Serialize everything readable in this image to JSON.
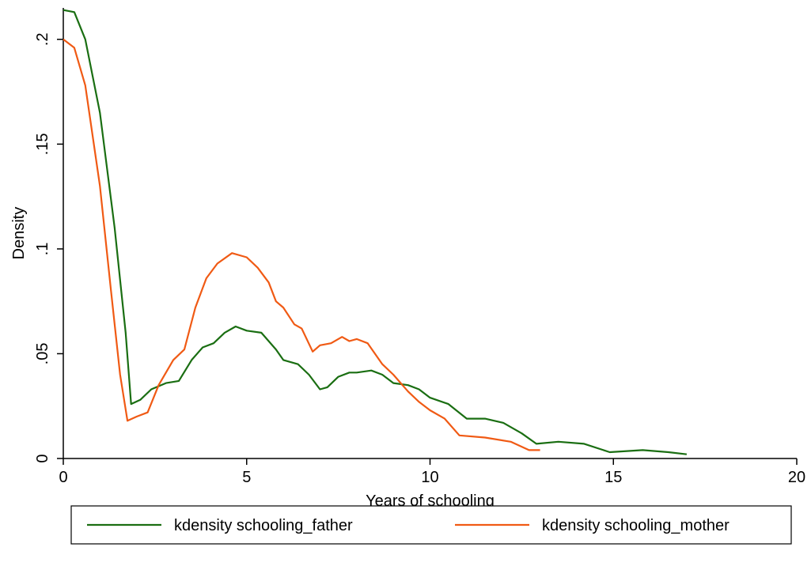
{
  "chart_data": {
    "type": "line",
    "title": "",
    "xlabel": "Years of schooling",
    "ylabel": "Density",
    "xlim": [
      0,
      20
    ],
    "ylim": [
      0,
      0.215
    ],
    "x_ticks": [
      {
        "value": 0,
        "label": "0"
      },
      {
        "value": 5,
        "label": "5"
      },
      {
        "value": 10,
        "label": "10"
      },
      {
        "value": 15,
        "label": "15"
      },
      {
        "value": 20,
        "label": "20"
      }
    ],
    "y_ticks": [
      {
        "value": 0,
        "label": "0"
      },
      {
        "value": 0.05,
        "label": ".05"
      },
      {
        "value": 0.1,
        "label": ".1"
      },
      {
        "value": 0.15,
        "label": ".15"
      },
      {
        "value": 0.2,
        "label": ".2"
      }
    ],
    "grid": false,
    "legend_position": "bottom",
    "series": [
      {
        "name": "kdensity schooling_father",
        "color": "#1a6e12",
        "points": [
          [
            0,
            0.214
          ],
          [
            0.3,
            0.213
          ],
          [
            0.6,
            0.2
          ],
          [
            1.0,
            0.165
          ],
          [
            1.4,
            0.11
          ],
          [
            1.7,
            0.06
          ],
          [
            1.85,
            0.026
          ],
          [
            2.1,
            0.028
          ],
          [
            2.4,
            0.033
          ],
          [
            2.8,
            0.036
          ],
          [
            3.15,
            0.037
          ],
          [
            3.5,
            0.047
          ],
          [
            3.8,
            0.053
          ],
          [
            4.1,
            0.055
          ],
          [
            4.4,
            0.06
          ],
          [
            4.7,
            0.063
          ],
          [
            5.0,
            0.061
          ],
          [
            5.4,
            0.06
          ],
          [
            5.8,
            0.052
          ],
          [
            6.0,
            0.047
          ],
          [
            6.4,
            0.045
          ],
          [
            6.7,
            0.04
          ],
          [
            7.0,
            0.033
          ],
          [
            7.2,
            0.034
          ],
          [
            7.5,
            0.039
          ],
          [
            7.8,
            0.041
          ],
          [
            8.0,
            0.041
          ],
          [
            8.4,
            0.042
          ],
          [
            8.7,
            0.04
          ],
          [
            9.0,
            0.036
          ],
          [
            9.4,
            0.035
          ],
          [
            9.7,
            0.033
          ],
          [
            10.0,
            0.029
          ],
          [
            10.5,
            0.026
          ],
          [
            11.0,
            0.019
          ],
          [
            11.5,
            0.019
          ],
          [
            12.0,
            0.017
          ],
          [
            12.5,
            0.012
          ],
          [
            12.9,
            0.007
          ],
          [
            13.5,
            0.008
          ],
          [
            14.2,
            0.007
          ],
          [
            14.9,
            0.003
          ],
          [
            15.8,
            0.004
          ],
          [
            16.5,
            0.003
          ],
          [
            17.0,
            0.002
          ]
        ]
      },
      {
        "name": "kdensity schooling_mother",
        "color": "#f05a14",
        "points": [
          [
            0,
            0.2
          ],
          [
            0.3,
            0.196
          ],
          [
            0.6,
            0.178
          ],
          [
            1.0,
            0.13
          ],
          [
            1.3,
            0.08
          ],
          [
            1.55,
            0.04
          ],
          [
            1.75,
            0.018
          ],
          [
            2.0,
            0.02
          ],
          [
            2.3,
            0.022
          ],
          [
            2.6,
            0.035
          ],
          [
            3.0,
            0.047
          ],
          [
            3.3,
            0.052
          ],
          [
            3.6,
            0.072
          ],
          [
            3.9,
            0.086
          ],
          [
            4.2,
            0.093
          ],
          [
            4.6,
            0.098
          ],
          [
            5.0,
            0.096
          ],
          [
            5.3,
            0.091
          ],
          [
            5.6,
            0.084
          ],
          [
            5.8,
            0.075
          ],
          [
            6.0,
            0.072
          ],
          [
            6.3,
            0.064
          ],
          [
            6.5,
            0.062
          ],
          [
            6.8,
            0.051
          ],
          [
            7.0,
            0.054
          ],
          [
            7.3,
            0.055
          ],
          [
            7.6,
            0.058
          ],
          [
            7.8,
            0.056
          ],
          [
            8.0,
            0.057
          ],
          [
            8.3,
            0.055
          ],
          [
            8.7,
            0.045
          ],
          [
            9.0,
            0.04
          ],
          [
            9.4,
            0.032
          ],
          [
            9.7,
            0.027
          ],
          [
            10.0,
            0.023
          ],
          [
            10.4,
            0.019
          ],
          [
            10.8,
            0.011
          ],
          [
            11.5,
            0.01
          ],
          [
            12.2,
            0.008
          ],
          [
            12.7,
            0.004
          ],
          [
            13.0,
            0.004
          ]
        ]
      }
    ]
  }
}
